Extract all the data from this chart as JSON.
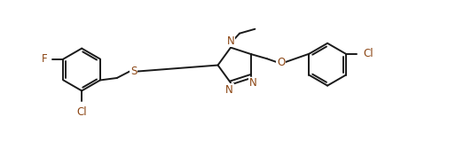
{
  "bg": "#ffffff",
  "lc": "#1a1a1a",
  "dc": "#8B4513",
  "figsize": [
    5.23,
    1.67
  ],
  "dpi": 100,
  "lw": 1.4,
  "fs": 8.5,
  "xlim": [
    0,
    10.5
  ],
  "ylim": [
    -0.3,
    2.0
  ]
}
